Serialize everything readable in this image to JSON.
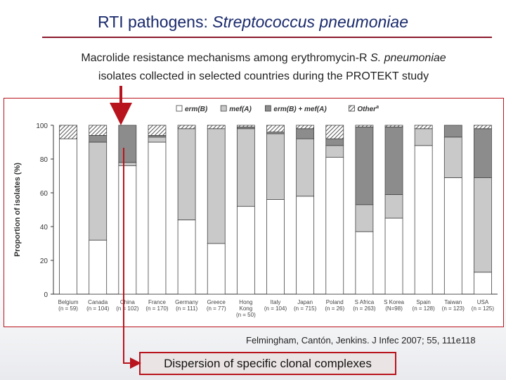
{
  "slide": {
    "title_plain": "RTI pathogens: ",
    "title_italic": "Streptococcus pneumoniae",
    "subtitle_line1_a": "Macrolide resistance mechanisms among erythromycin-R ",
    "subtitle_line1_italic": "S. pneumoniae",
    "subtitle_line2": "isolates collected in selected countries during the PROTEKT study",
    "citation": "Felmingham, Cantón, Jenkins. J Infec 2007;  55, 111e118",
    "callout": "Dispersion of specific clonal complexes"
  },
  "colors": {
    "title": "#1a2a6c",
    "accent_red": "#b8141e",
    "mefA": "#c9c9c9",
    "ermB_mefA": "#8c8c8c",
    "ermB": "#ffffff",
    "other_hatch": "#555555"
  },
  "chart_data": {
    "type": "bar",
    "stacked": true,
    "ylabel": "Proportion of isolates (%)",
    "ylim": [
      0,
      100
    ],
    "yticks": [
      0,
      20,
      40,
      60,
      80,
      100
    ],
    "legend_position": "top",
    "categories": [
      "Belgium",
      "Canada",
      "China",
      "France",
      "Germany",
      "Greece",
      "Hong Kong",
      "Italy",
      "Japan",
      "Poland",
      "S Africa",
      "S Korea",
      "Spain",
      "Taiwan",
      "USA"
    ],
    "category_n": [
      "(n = 59)",
      "(n = 104)",
      "(n = 102)",
      "(n = 170)",
      "(n = 111)",
      "(n = 77)",
      "(n = 50)",
      "(n = 104)",
      "(n = 715)",
      "(n = 26)",
      "(n = 263)",
      "(N=98)",
      "(n = 128)",
      "(n = 123)",
      "(n = 125)"
    ],
    "series": [
      {
        "name": "erm(B)",
        "values": [
          92,
          32,
          76,
          90,
          44,
          30,
          52,
          56,
          58,
          81,
          37,
          45,
          88,
          69,
          13
        ]
      },
      {
        "name": "mef(A)",
        "values": [
          0,
          58,
          2,
          3,
          54,
          68,
          46,
          39,
          34,
          7,
          16,
          14,
          10,
          24,
          56
        ]
      },
      {
        "name": "erm(B) + mef(A)",
        "values": [
          0,
          4,
          22,
          1,
          0,
          0,
          1,
          1,
          6,
          4,
          46,
          40,
          0,
          7,
          29
        ]
      },
      {
        "name": "Other",
        "superscript": "a",
        "values": [
          8,
          6,
          0,
          6,
          2,
          2,
          1,
          4,
          2,
          8,
          1,
          1,
          2,
          0,
          2
        ]
      }
    ]
  }
}
